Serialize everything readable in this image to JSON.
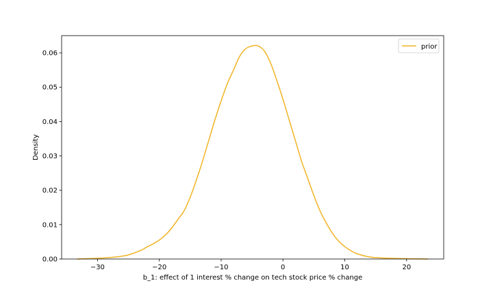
{
  "chart_data": {
    "type": "line",
    "title": "",
    "xlabel": "b_1: effect of 1 interest % change on tech stock price % change",
    "ylabel": "Density",
    "xlim": [
      -35.8,
      26.0
    ],
    "ylim": [
      0.0,
      0.065
    ],
    "xticks": [
      -30,
      -20,
      -10,
      0,
      10,
      20
    ],
    "xtick_labels": [
      "−30",
      "−20",
      "−10",
      "0",
      "10",
      "20"
    ],
    "yticks": [
      0.0,
      0.01,
      0.02,
      0.03,
      0.04,
      0.05,
      0.06
    ],
    "ytick_labels": [
      "0.00",
      "0.01",
      "0.02",
      "0.03",
      "0.04",
      "0.05",
      "0.06"
    ],
    "grid": false,
    "legend": {
      "position": "top-right",
      "entries": [
        "prior"
      ]
    },
    "colors": {
      "prior": "#f0b323"
    },
    "series": [
      {
        "name": "prior",
        "color": "#f0b323",
        "points": [
          [
            -33.3,
            0.0
          ],
          [
            -30,
            0.0002
          ],
          [
            -27,
            0.0006
          ],
          [
            -25,
            0.0012
          ],
          [
            -23,
            0.0025
          ],
          [
            -22,
            0.0035
          ],
          [
            -21,
            0.0044
          ],
          [
            -20,
            0.0055
          ],
          [
            -19,
            0.007
          ],
          [
            -18,
            0.009
          ],
          [
            -17,
            0.0115
          ],
          [
            -16,
            0.014
          ],
          [
            -15,
            0.018
          ],
          [
            -14,
            0.023
          ],
          [
            -13,
            0.0285
          ],
          [
            -12,
            0.0345
          ],
          [
            -11,
            0.0405
          ],
          [
            -10,
            0.046
          ],
          [
            -9,
            0.051
          ],
          [
            -8,
            0.055
          ],
          [
            -7,
            0.059
          ],
          [
            -6,
            0.0612
          ],
          [
            -5,
            0.062
          ],
          [
            -4,
            0.062
          ],
          [
            -3,
            0.0605
          ],
          [
            -2,
            0.057
          ],
          [
            -1,
            0.052
          ],
          [
            0,
            0.0465
          ],
          [
            1,
            0.0405
          ],
          [
            2,
            0.0345
          ],
          [
            3,
            0.0285
          ],
          [
            4,
            0.0235
          ],
          [
            5,
            0.0185
          ],
          [
            6,
            0.014
          ],
          [
            7,
            0.0105
          ],
          [
            8,
            0.0075
          ],
          [
            9,
            0.0052
          ],
          [
            10,
            0.0036
          ],
          [
            11,
            0.0024
          ],
          [
            12,
            0.0015
          ],
          [
            14,
            0.0006
          ],
          [
            16,
            0.0003
          ],
          [
            20,
            0.0001
          ],
          [
            23.5,
            0.0
          ]
        ]
      }
    ]
  }
}
